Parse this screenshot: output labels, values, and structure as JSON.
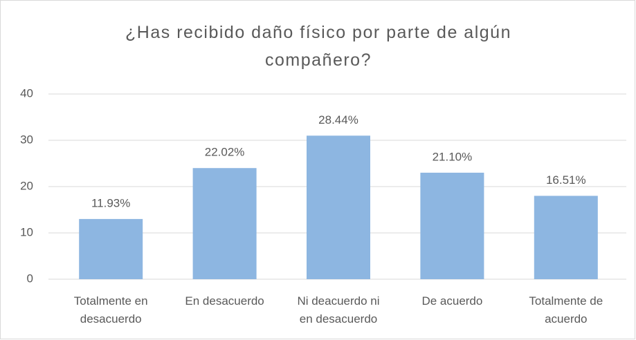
{
  "chart_data": {
    "type": "bar",
    "title": "¿Has recibido daño físico por parte de algún compañero?",
    "categories": [
      "Totalmente en desacuerdo",
      "En desacuerdo",
      "Ni deacuerdo ni en desacuerdo",
      "De acuerdo",
      "Totalmente de acuerdo"
    ],
    "values": [
      13,
      24,
      31,
      23,
      18
    ],
    "value_labels": [
      "11.93%",
      "22.02%",
      "28.44%",
      "21.10%",
      "16.51%"
    ],
    "color": "#8db6e1",
    "ylim": [
      0,
      40
    ],
    "yticks": [
      0,
      10,
      20,
      30,
      40
    ],
    "grid": true
  }
}
